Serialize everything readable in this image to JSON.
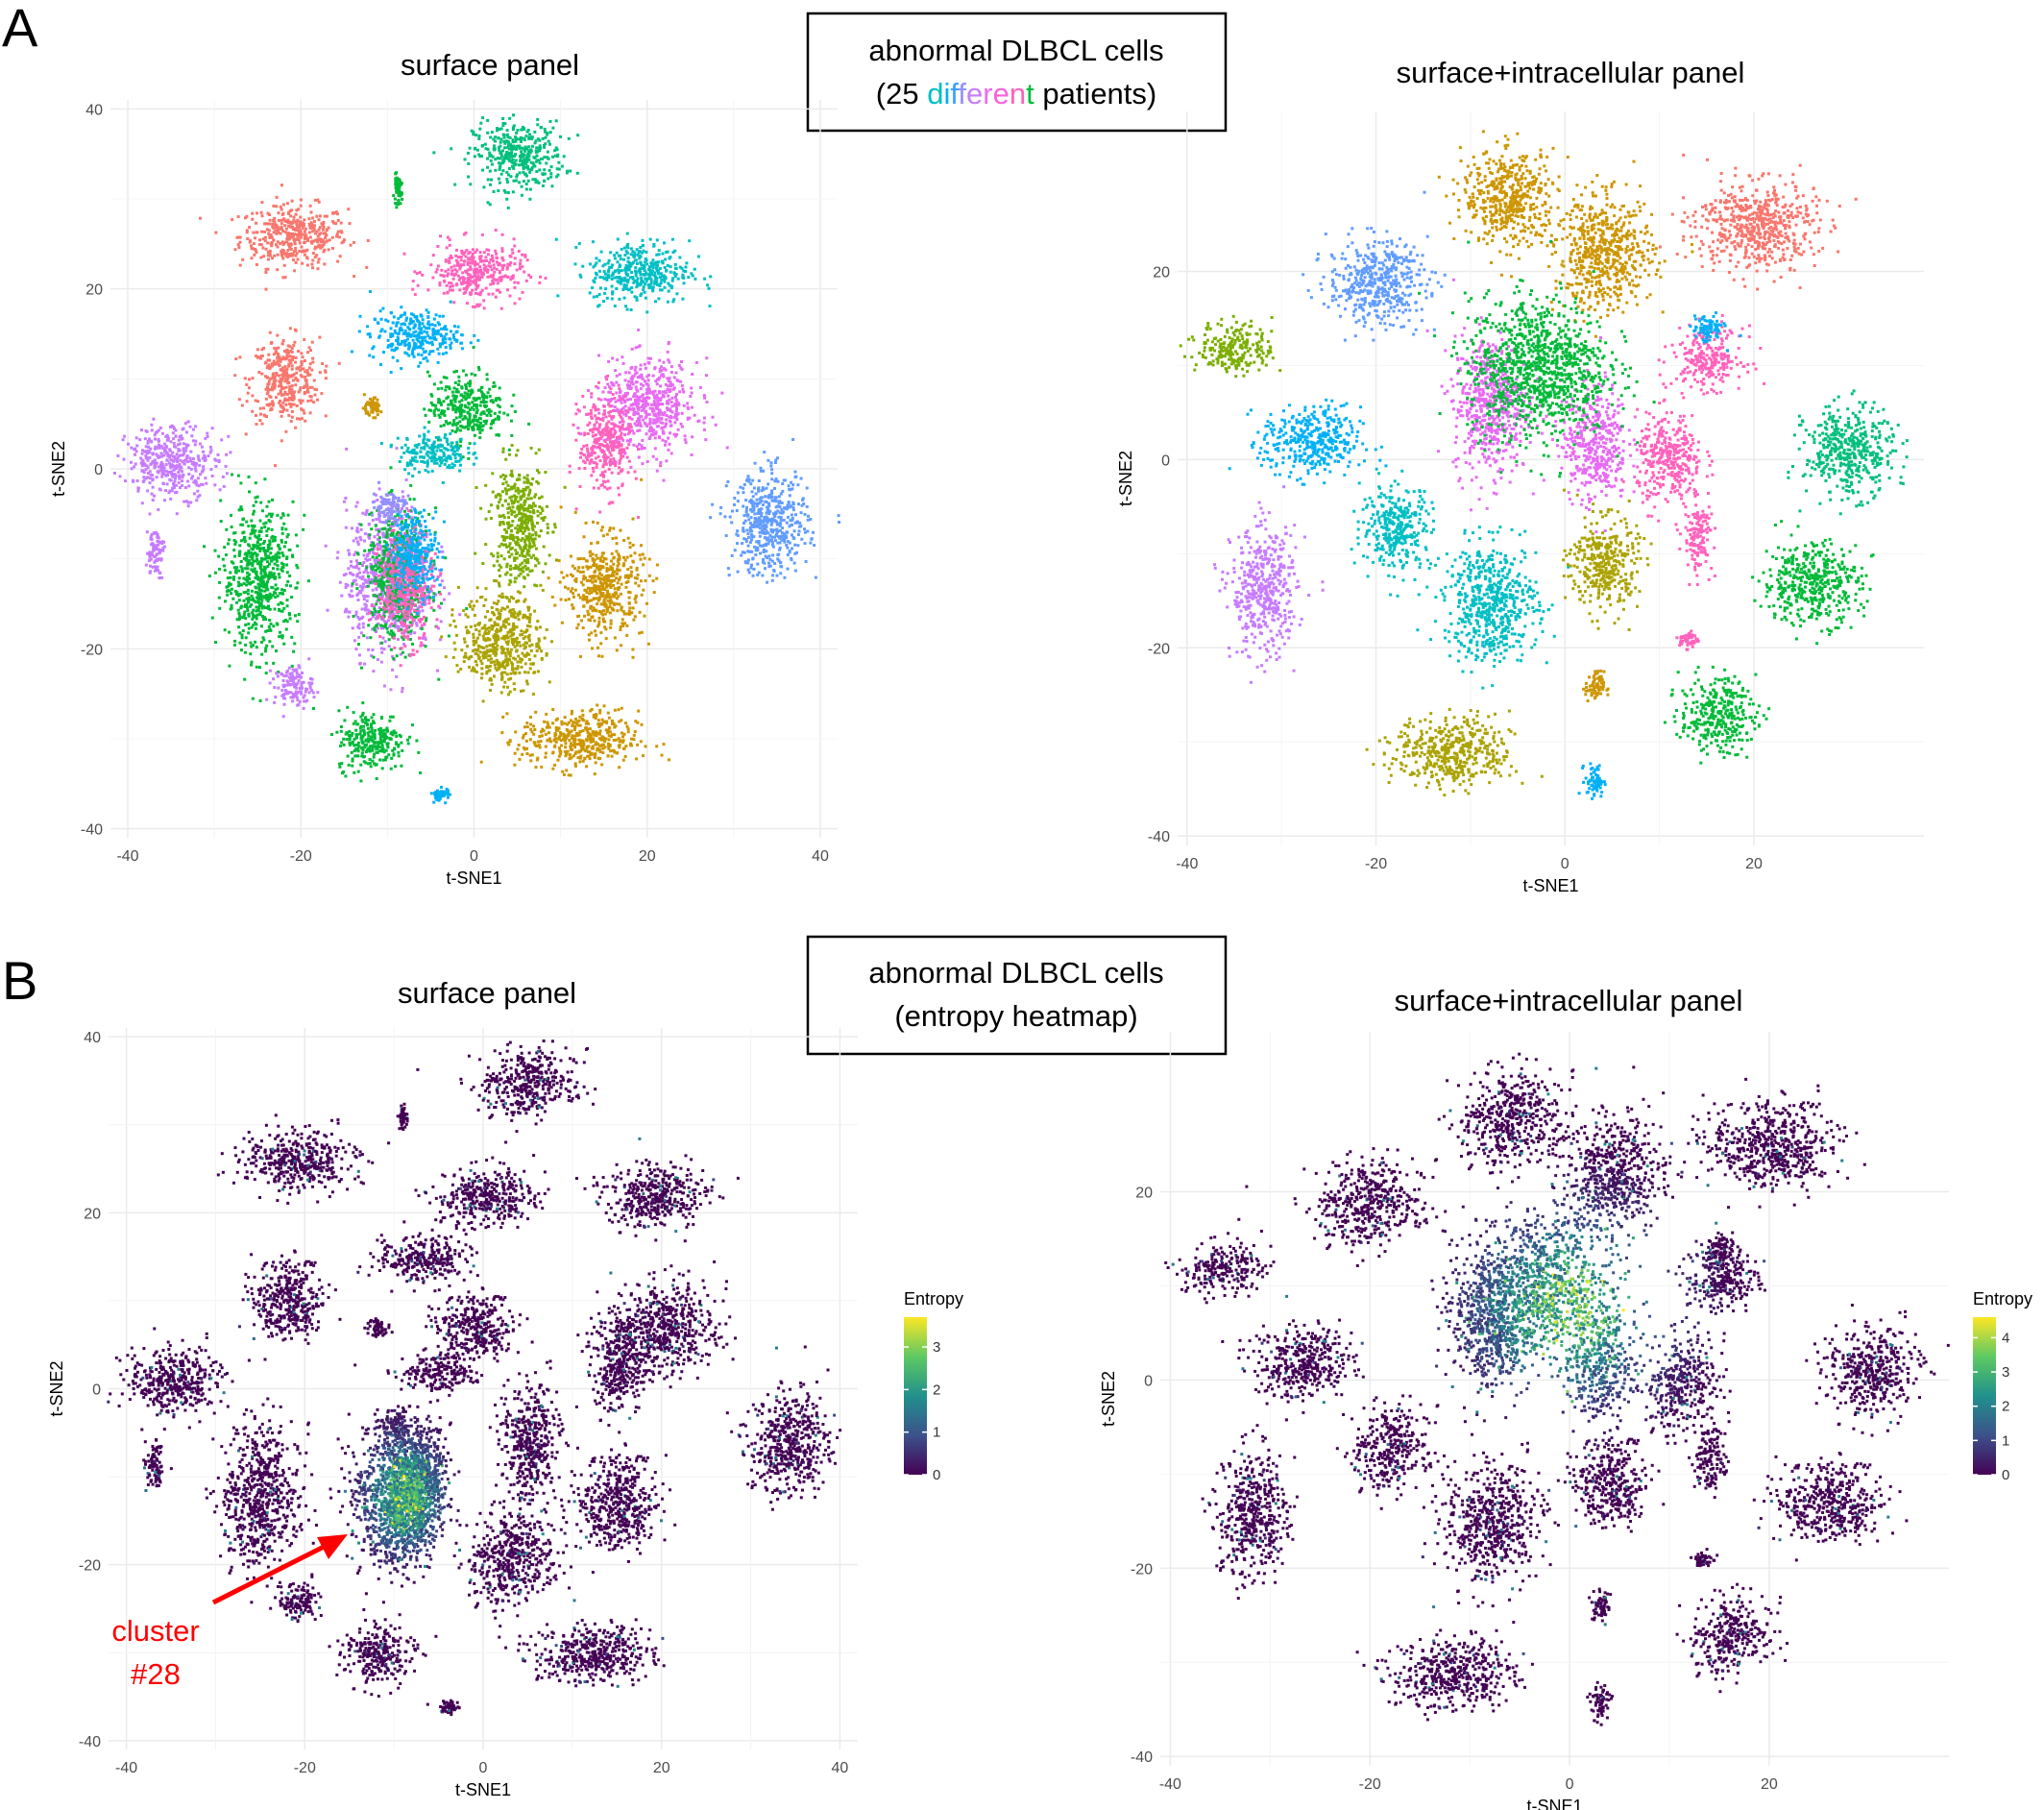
{
  "figure": {
    "panel_labels": [
      "A",
      "B"
    ],
    "boxes": [
      {
        "line1": "abnormal DLBCL cells",
        "line2_prefix": "(25 ",
        "line2_colored_word": "different",
        "line2_suffix": " patients)",
        "colored_letter_colors": [
          "#00BFC4",
          "#00B0F6",
          "#35A2FF",
          "#9590FF",
          "#C77CFF",
          "#E76BF3",
          "#FA62DB",
          "#FF62BC",
          "#00BA38"
        ]
      },
      {
        "line1": "abnormal DLBCL cells",
        "line2": "(entropy heatmap)"
      }
    ],
    "annotation": {
      "line1": "cluster",
      "line2": "#28",
      "color": "#ff0000"
    }
  },
  "chart_data": [
    {
      "id": "A-left",
      "type": "scatter",
      "title": "surface panel",
      "xlabel": "t-SNE1",
      "ylabel": "t-SNE2",
      "xlim": [
        -42,
        42
      ],
      "ylim": [
        -41,
        41
      ],
      "xticks": [
        -40,
        -20,
        0,
        20,
        40
      ],
      "yticks": [
        -40,
        -20,
        0,
        20,
        40
      ],
      "grid": true,
      "color_mode": "cluster",
      "clusters": [
        {
          "x": -21,
          "y": 26,
          "sx": 5.0,
          "sy": 2.8,
          "color": "#F8766D"
        },
        {
          "x": -22,
          "y": 10,
          "sx": 3.2,
          "sy": 3.8,
          "color": "#F8766D"
        },
        {
          "x": 5,
          "y": 35,
          "sx": 4.2,
          "sy": 3.0,
          "color": "#00BF7D"
        },
        {
          "x": 0,
          "y": 22,
          "sx": 4.4,
          "sy": 2.6,
          "color": "#FF62BC"
        },
        {
          "x": 19,
          "y": 22,
          "sx": 4.6,
          "sy": 2.8,
          "color": "#00BFC4"
        },
        {
          "x": -7,
          "y": 15,
          "sx": 4.2,
          "sy": 2.2,
          "color": "#00B0F6"
        },
        {
          "x": -1,
          "y": 7,
          "sx": 3.5,
          "sy": 3.0,
          "color": "#00BA38"
        },
        {
          "x": -5,
          "y": 2,
          "sx": 3.2,
          "sy": 1.8,
          "color": "#00BFC4"
        },
        {
          "x": 20,
          "y": 7,
          "sx": 4.6,
          "sy": 4.2,
          "color": "#E76BF3"
        },
        {
          "x": 15,
          "y": 3,
          "sx": 2.4,
          "sy": 4.4,
          "color": "#FF62BC"
        },
        {
          "x": -35,
          "y": 1,
          "sx": 4.2,
          "sy": 3.2,
          "color": "#C77CFF"
        },
        {
          "x": -37,
          "y": -9,
          "sx": 0.8,
          "sy": 2.2,
          "color": "#C77CFF"
        },
        {
          "x": -25,
          "y": -12,
          "sx": 3.4,
          "sy": 6.5,
          "color": "#00BA38"
        },
        {
          "x": 34,
          "y": -6,
          "sx": 3.6,
          "sy": 4.6,
          "color": "#619CFF"
        },
        {
          "x": 5,
          "y": -6,
          "sx": 2.6,
          "sy": 5.5,
          "color": "#7CAE00"
        },
        {
          "x": 15,
          "y": -13,
          "sx": 3.5,
          "sy": 4.5,
          "color": "#CD9600"
        },
        {
          "x": 3,
          "y": -19,
          "sx": 3.8,
          "sy": 4.2,
          "color": "#ABA300"
        },
        {
          "x": 12,
          "y": -30,
          "sx": 5.5,
          "sy": 2.6,
          "color": "#CD9600"
        },
        {
          "x": -12,
          "y": -30,
          "sx": 3.2,
          "sy": 2.7,
          "color": "#00BA38"
        },
        {
          "x": -21,
          "y": -24,
          "sx": 1.8,
          "sy": 1.8,
          "color": "#C77CFF"
        },
        {
          "x": -10,
          "y": -12,
          "sx": 4.0,
          "sy": 6.5,
          "color": "#C77CFF"
        },
        {
          "x": -9,
          "y": -12,
          "sx": 3.0,
          "sy": 6.0,
          "color": "#00BA38"
        },
        {
          "x": -8,
          "y": -13,
          "sx": 2.5,
          "sy": 5.0,
          "color": "#FF62BC"
        },
        {
          "x": -7,
          "y": -9,
          "sx": 2.2,
          "sy": 3.8,
          "color": "#00B0F6"
        },
        {
          "x": -10,
          "y": -4,
          "sx": 1.5,
          "sy": 1.4,
          "color": "#9590FF"
        },
        {
          "x": -12,
          "y": 7,
          "sx": 0.9,
          "sy": 0.8,
          "color": "#CD9600"
        },
        {
          "x": -9,
          "y": 31,
          "sx": 0.4,
          "sy": 1.2,
          "color": "#00BA38"
        },
        {
          "x": -4,
          "y": -36,
          "sx": 0.8,
          "sy": 0.6,
          "color": "#00B0F6"
        }
      ]
    },
    {
      "id": "A-right",
      "type": "scatter",
      "title": "surface+intracellular panel",
      "xlabel": "t-SNE1",
      "ylabel": "t-SNE2",
      "xlim": [
        -41,
        38
      ],
      "ylim": [
        -41,
        37
      ],
      "xticks": [
        -40,
        -20,
        0,
        20
      ],
      "yticks": [
        -40,
        -20,
        0,
        20
      ],
      "grid": true,
      "color_mode": "cluster",
      "clusters": [
        {
          "x": -6,
          "y": 28,
          "sx": 4.0,
          "sy": 4.0,
          "color": "#CD9600"
        },
        {
          "x": 4,
          "y": 22,
          "sx": 4.2,
          "sy": 4.8,
          "color": "#CD9600"
        },
        {
          "x": 20,
          "y": 25,
          "sx": 5.2,
          "sy": 3.8,
          "color": "#F8766D"
        },
        {
          "x": -20,
          "y": 19,
          "sx": 4.2,
          "sy": 3.6,
          "color": "#619CFF"
        },
        {
          "x": -35,
          "y": 12,
          "sx": 3.2,
          "sy": 2.2,
          "color": "#7CAE00"
        },
        {
          "x": -27,
          "y": 2,
          "sx": 4.2,
          "sy": 3.0,
          "color": "#00B0F6"
        },
        {
          "x": -8,
          "y": 6,
          "sx": 3.2,
          "sy": 6.0,
          "color": "#E76BF3"
        },
        {
          "x": 3,
          "y": 2,
          "sx": 2.8,
          "sy": 5.0,
          "color": "#E76BF3"
        },
        {
          "x": 11,
          "y": 0,
          "sx": 2.8,
          "sy": 4.0,
          "color": "#FF62BC"
        },
        {
          "x": 15,
          "y": 11,
          "sx": 3.0,
          "sy": 2.6,
          "color": "#FF62BC"
        },
        {
          "x": 15,
          "y": 14,
          "sx": 1.3,
          "sy": 1.2,
          "color": "#00B0F6"
        },
        {
          "x": 30,
          "y": 1,
          "sx": 3.8,
          "sy": 3.8,
          "color": "#00BF7D"
        },
        {
          "x": 26,
          "y": -13,
          "sx": 4.2,
          "sy": 3.5,
          "color": "#00BA38"
        },
        {
          "x": -18,
          "y": -7,
          "sx": 3.0,
          "sy": 3.5,
          "color": "#00BFC4"
        },
        {
          "x": -32,
          "y": -14,
          "sx": 2.8,
          "sy": 5.5,
          "color": "#C77CFF"
        },
        {
          "x": -8,
          "y": -15,
          "sx": 4.0,
          "sy": 5.0,
          "color": "#00BFC4"
        },
        {
          "x": 4,
          "y": -11,
          "sx": 2.9,
          "sy": 4.0,
          "color": "#ABA300"
        },
        {
          "x": 14,
          "y": -8,
          "sx": 1.2,
          "sy": 3.0,
          "color": "#FF62BC"
        },
        {
          "x": 16,
          "y": -27,
          "sx": 3.2,
          "sy": 3.2,
          "color": "#00BA38"
        },
        {
          "x": -12,
          "y": -31,
          "sx": 5.0,
          "sy": 3.0,
          "color": "#ABA300"
        },
        {
          "x": 3,
          "y": -24,
          "sx": 0.8,
          "sy": 1.3,
          "color": "#CD9600"
        },
        {
          "x": 3,
          "y": -34,
          "sx": 0.8,
          "sy": 1.4,
          "color": "#00B0F6"
        },
        {
          "x": 13,
          "y": -19,
          "sx": 0.8,
          "sy": 0.7,
          "color": "#FF62BC"
        },
        {
          "x": -3,
          "y": 10,
          "sx": 6.0,
          "sy": 6.0,
          "color": "#00BA38"
        }
      ]
    },
    {
      "id": "B-left",
      "type": "scatter",
      "title": "surface panel",
      "xlabel": "t-SNE1",
      "ylabel": "t-SNE2",
      "xlim": [
        -42,
        42
      ],
      "ylim": [
        -41,
        41
      ],
      "xticks": [
        -40,
        -20,
        0,
        20,
        40
      ],
      "yticks": [
        -40,
        -20,
        0,
        20,
        40
      ],
      "grid": true,
      "color_mode": "entropy",
      "legend": {
        "title": "Entropy",
        "min": 0,
        "max": 3.7,
        "ticks": [
          0,
          1,
          2,
          3
        ],
        "position": "right"
      },
      "high_entropy_regions": [
        {
          "x": -9,
          "y": -12,
          "sx": 4.0,
          "sy": 6.0
        }
      ]
    },
    {
      "id": "B-right",
      "type": "scatter",
      "title": "surface+intracellular panel",
      "xlabel": "t-SNE1",
      "ylabel": "t-SNE2",
      "xlim": [
        -41,
        38
      ],
      "ylim": [
        -41,
        37
      ],
      "xticks": [
        -40,
        -20,
        0,
        20
      ],
      "yticks": [
        -40,
        -20,
        0,
        20
      ],
      "grid": true,
      "color_mode": "entropy",
      "legend": {
        "title": "Entropy",
        "min": 0,
        "max": 4.6,
        "ticks": [
          0,
          1,
          2,
          3,
          4
        ],
        "position": "right"
      },
      "high_entropy_regions": [
        {
          "x": 0,
          "y": 8,
          "sx": 9.0,
          "sy": 9.0
        }
      ]
    }
  ]
}
